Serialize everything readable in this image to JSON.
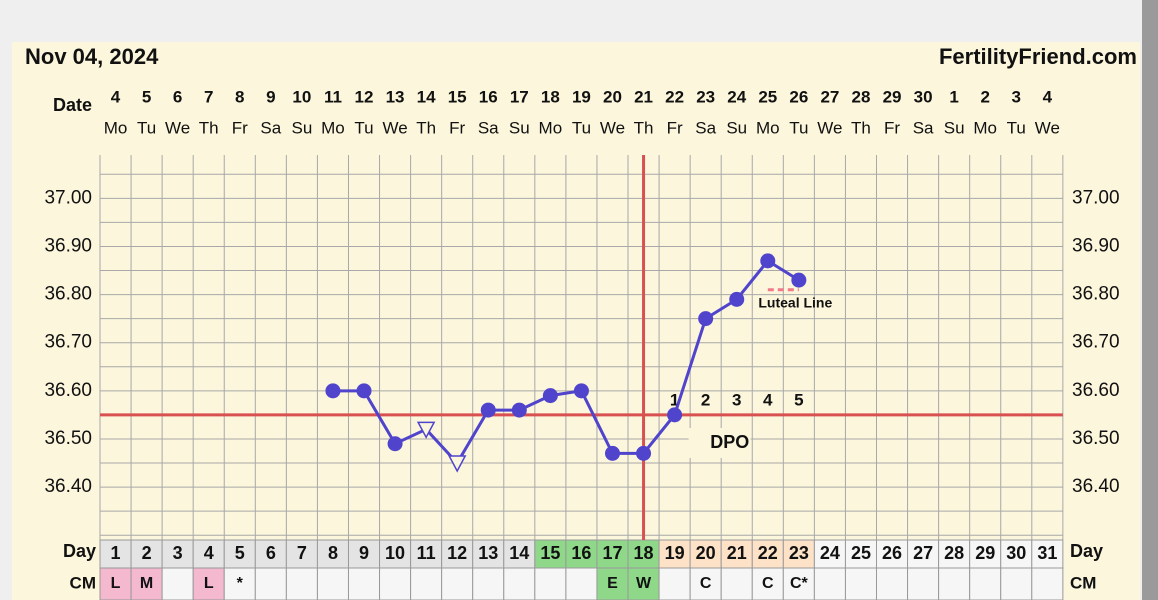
{
  "header": {
    "date": "Nov 04, 2024",
    "site": "FertilityFriend.com"
  },
  "chart_data": {
    "type": "line",
    "date_label": "Date",
    "dates": [
      4,
      5,
      6,
      7,
      8,
      9,
      10,
      11,
      12,
      13,
      14,
      15,
      16,
      17,
      18,
      19,
      20,
      21,
      22,
      23,
      24,
      25,
      26,
      27,
      28,
      29,
      30,
      1,
      2,
      3,
      4
    ],
    "weekdays": [
      "Mo",
      "Tu",
      "We",
      "Th",
      "Fr",
      "Sa",
      "Su",
      "Mo",
      "Tu",
      "We",
      "Th",
      "Fr",
      "Sa",
      "Su",
      "Mo",
      "Tu",
      "We",
      "Th",
      "Fr",
      "Sa",
      "Su",
      "Mo",
      "Tu",
      "We",
      "Th",
      "Fr",
      "Sa",
      "Su",
      "Mo",
      "Tu",
      "We"
    ],
    "day_label": "Day",
    "days": [
      1,
      2,
      3,
      4,
      5,
      6,
      7,
      8,
      9,
      10,
      11,
      12,
      13,
      14,
      15,
      16,
      17,
      18,
      19,
      20,
      21,
      22,
      23,
      24,
      25,
      26,
      27,
      28,
      29,
      30,
      31
    ],
    "day_colors": [
      "#e4e4e4",
      "#e4e4e4",
      "#e4e4e4",
      "#e4e4e4",
      "#e4e4e4",
      "#e4e4e4",
      "#e4e4e4",
      "#e4e4e4",
      "#e4e4e4",
      "#e4e4e4",
      "#e4e4e4",
      "#e4e4e4",
      "#e4e4e4",
      "#e4e4e4",
      "#8fd88a",
      "#8fd88a",
      "#8fd88a",
      "#8fd88a",
      "#fde2c8",
      "#fde2c8",
      "#fde2c8",
      "#fde2c8",
      "#fde2c8",
      "#f6f6f6",
      "#f6f6f6",
      "#f6f6f6",
      "#f6f6f6",
      "#f6f6f6",
      "#f6f6f6",
      "#f6f6f6",
      "#f6f6f6"
    ],
    "cm_label": "CM",
    "cm": [
      "L",
      "M",
      null,
      "L",
      "*",
      null,
      null,
      null,
      null,
      null,
      null,
      null,
      null,
      null,
      null,
      null,
      "E",
      "W",
      null,
      "C",
      null,
      "C",
      "C*",
      null,
      null,
      null,
      null,
      null,
      null,
      null,
      null
    ],
    "cm_colors": [
      "#f4b8cf",
      "#f4b8cf",
      "#f6f6f6",
      "#f4b8cf",
      "#f6f6f6",
      "#f6f6f6",
      "#f6f6f6",
      "#f6f6f6",
      "#f6f6f6",
      "#f6f6f6",
      "#f6f6f6",
      "#f6f6f6",
      "#f6f6f6",
      "#f6f6f6",
      "#f6f6f6",
      "#f6f6f6",
      "#8fd88a",
      "#8fd88a",
      "#f6f6f6",
      "#f6f6f6",
      "#f6f6f6",
      "#f6f6f6",
      "#f6f6f6",
      "#f6f6f6",
      "#f6f6f6",
      "#f6f6f6",
      "#f6f6f6",
      "#f6f6f6",
      "#f6f6f6",
      "#f6f6f6",
      "#f6f6f6"
    ],
    "series": [
      {
        "color": "#5044cc",
        "values": [
          null,
          null,
          null,
          null,
          null,
          null,
          null,
          36.6,
          36.6,
          36.49,
          36.52,
          36.45,
          36.56,
          36.56,
          36.59,
          36.6,
          36.47,
          36.47,
          36.55,
          36.75,
          36.79,
          36.87,
          36.83,
          null,
          null,
          null,
          null,
          null,
          null,
          null,
          null
        ]
      }
    ],
    "discarded_days": [
      11,
      12
    ],
    "coverline": 36.55,
    "coverline_color": "#d95050",
    "ovulation_day": 18,
    "dpo": [
      1,
      2,
      3,
      4,
      5
    ],
    "dpo_label": "DPO",
    "luteal_line": 36.81,
    "luteal_label": "Luteal Line",
    "luteal_days": [
      22,
      23
    ],
    "ylim": [
      36.29,
      37.09
    ],
    "yticks": [
      {
        "value": 36.4,
        "label": "36.40"
      },
      {
        "value": 36.5,
        "label": "36.50"
      },
      {
        "value": 36.6,
        "label": "36.60"
      },
      {
        "value": 36.7,
        "label": "36.70"
      },
      {
        "value": 36.8,
        "label": "36.80"
      },
      {
        "value": 36.9,
        "label": "36.90"
      },
      {
        "value": 37,
        "label": "37.00"
      }
    ],
    "grid": true
  }
}
